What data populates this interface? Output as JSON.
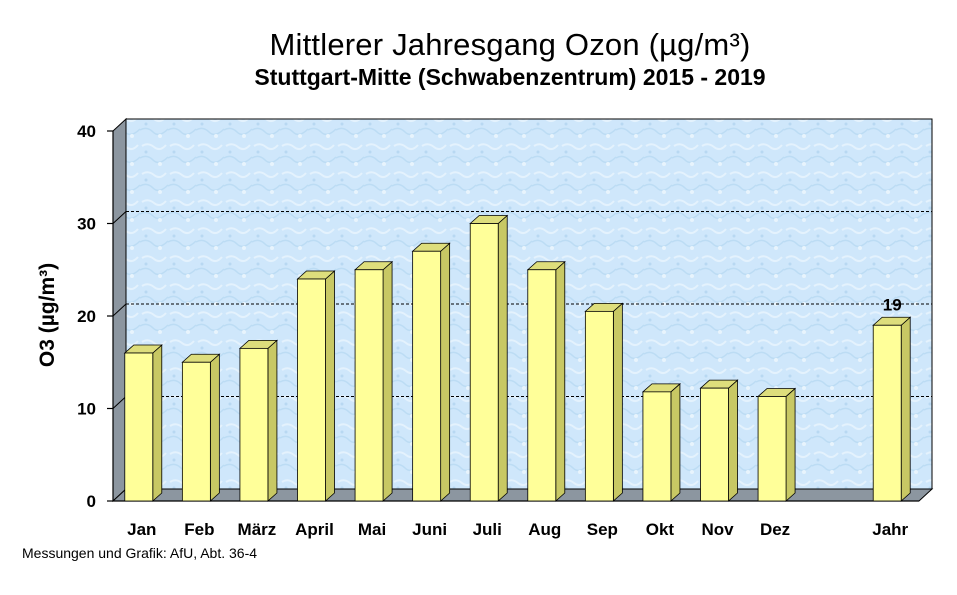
{
  "chart_data": {
    "type": "bar",
    "title": "Mittlerer Jahresgang Ozon (µg/m³)",
    "subtitle": "Stuttgart-Mitte (Schwabenzentrum) 2015 - 2019",
    "ylabel": "O3 (µg/m³)",
    "ylim": [
      0,
      40
    ],
    "yticks": [
      0,
      10,
      20,
      30,
      40
    ],
    "grid": "dashed horizontal at 10, 20, 30",
    "categories": [
      "Jan",
      "Feb",
      "März",
      "April",
      "Mai",
      "Juni",
      "Juli",
      "Aug",
      "Sep",
      "Okt",
      "Nov",
      "Dez",
      "Jahr"
    ],
    "values": [
      16,
      15,
      16.5,
      24,
      25,
      27,
      30,
      25,
      20.5,
      11.8,
      12.2,
      11.3,
      19
    ],
    "data_labels": [
      {
        "category": "Jahr",
        "text": "19"
      }
    ],
    "colors": {
      "bar_front": "#ffff99",
      "bar_side": "#c8c864",
      "bar_top": "#dede7c",
      "plot_wall": "#cfe8fa",
      "side_wall": "#8c96a0",
      "floor": "#8c96a0"
    }
  },
  "footer": "Messungen und Grafik: AfU, Abt. 36-4"
}
